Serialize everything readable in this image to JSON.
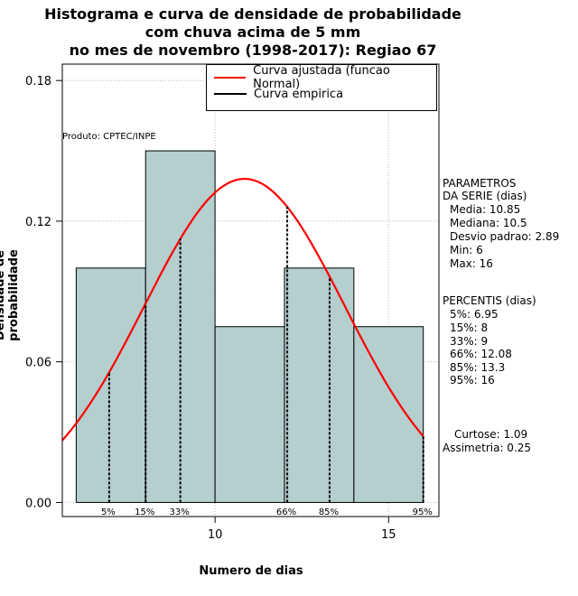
{
  "title_lines": [
    "Histograma e curva de densidade de probabilidade",
    "com chuva acima de 5 mm",
    "no mes de novembro (1998-2017): Regiao 67"
  ],
  "produto": "Produto: CPTEC/INPE",
  "legend": {
    "fitted": "Curva ajustada (funcao Normal)",
    "empirical": "Curva empirica",
    "fitted_color": "#ff0000",
    "empirical_color": "#000000"
  },
  "parametros": {
    "header": [
      "PARAMETROS",
      "DA SERIE (dias)"
    ],
    "lines": [
      "Media: 10.85",
      "Mediana: 10.5",
      "Desvio padrao: 2.89",
      "Min: 6",
      "Max: 16"
    ]
  },
  "percentis": {
    "header": "PERCENTIS (dias)",
    "lines": [
      "5%: 6.95",
      "15%: 8",
      "33%: 9",
      "66%: 12.08",
      "85%: 13.3",
      "95%: 16"
    ]
  },
  "moments": [
    "Curtose: 1.09",
    "Assimetria: 0.25"
  ],
  "chart_data": {
    "type": "bar",
    "title": "Histograma e curva de densidade de probabilidade com chuva acima de 5 mm no mes de novembro (1998-2017): Regiao 67",
    "xlabel": "Numero de dias",
    "ylabel": "Densidade de probabilidade",
    "xlim": [
      5.6,
      16.45
    ],
    "ylim": [
      -0.006,
      0.187
    ],
    "x_ticks": [
      10,
      15
    ],
    "y_ticks": [
      0.0,
      0.06,
      0.12,
      0.18
    ],
    "y_tick_labels": [
      "0.00",
      "0.06",
      "0.12",
      "0.18"
    ],
    "bin_edges": [
      6,
      8,
      10,
      12,
      14,
      16
    ],
    "density": [
      0.1,
      0.15,
      0.075,
      0.1,
      0.075
    ],
    "bar_color": "#b5cece",
    "grid": true,
    "normal_fit": {
      "mean": 10.85,
      "sd": 2.89,
      "color": "#ff0000"
    },
    "percentiles": [
      {
        "label": "5%",
        "value": 6.95
      },
      {
        "label": "15%",
        "value": 8
      },
      {
        "label": "33%",
        "value": 9
      },
      {
        "label": "66%",
        "value": 12.08
      },
      {
        "label": "85%",
        "value": 13.3
      },
      {
        "label": "95%",
        "value": 16
      }
    ]
  }
}
